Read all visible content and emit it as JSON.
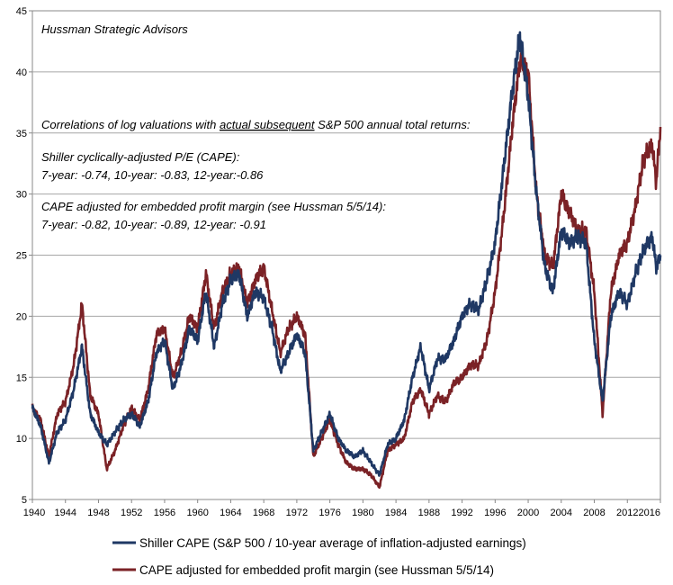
{
  "chart_data": {
    "type": "line",
    "title": "",
    "xlabel": "",
    "ylabel": "",
    "xlim": [
      1940,
      2016
    ],
    "ylim": [
      5,
      45
    ],
    "grid": "horizontal",
    "legend_position": "bottom",
    "x_ticks": [
      "1940",
      "1944",
      "1948",
      "1952",
      "1956",
      "1960",
      "1964",
      "1968",
      "1972",
      "1976",
      "1980",
      "1984",
      "1988",
      "1992",
      "1996",
      "2000",
      "2004",
      "2008",
      "2012",
      "2016"
    ],
    "y_ticks": [
      "5",
      "10",
      "15",
      "20",
      "25",
      "30",
      "35",
      "40",
      "45"
    ],
    "annotations": {
      "source": "Hussman Strategic Advisors",
      "corr_prefix": "Correlations of log valuations with ",
      "corr_underlined": "actual subsequent",
      "corr_suffix": " S&P 500 annual total returns:",
      "cape_title": "Shiller cyclically-adjusted P/E (CAPE):",
      "cape_values": "7-year: -0.74, 10-year: -0.83, 12-year:-0.86",
      "adj_title": "CAPE adjusted for embedded profit margin (see Hussman 5/5/14):",
      "adj_values": "7-year: -0.82, 10-year: -0.89, 12-year: -0.91"
    },
    "series": [
      {
        "name": "Shiller CAPE (S&P 500 / 10-year average of inflation-adjusted earnings)",
        "color": "#1f3864",
        "points": [
          [
            1940,
            12.5
          ],
          [
            1941,
            11
          ],
          [
            1942,
            8
          ],
          [
            1943,
            10.5
          ],
          [
            1944,
            11.5
          ],
          [
            1945,
            14
          ],
          [
            1946,
            17.5
          ],
          [
            1947,
            12
          ],
          [
            1948,
            10.5
          ],
          [
            1949,
            9.5
          ],
          [
            1950,
            10.5
          ],
          [
            1951,
            11.5
          ],
          [
            1952,
            12
          ],
          [
            1953,
            11
          ],
          [
            1954,
            13
          ],
          [
            1955,
            17
          ],
          [
            1956,
            18
          ],
          [
            1957,
            14
          ],
          [
            1958,
            16
          ],
          [
            1959,
            19
          ],
          [
            1960,
            18
          ],
          [
            1961,
            22
          ],
          [
            1962,
            17.5
          ],
          [
            1963,
            21
          ],
          [
            1964,
            23
          ],
          [
            1965,
            23.5
          ],
          [
            1966,
            20
          ],
          [
            1967,
            22
          ],
          [
            1968,
            21.5
          ],
          [
            1969,
            19
          ],
          [
            1970,
            15.5
          ],
          [
            1971,
            17
          ],
          [
            1972,
            18.5
          ],
          [
            1973,
            17
          ],
          [
            1974,
            9
          ],
          [
            1975,
            10.5
          ],
          [
            1976,
            12
          ],
          [
            1977,
            10
          ],
          [
            1978,
            9
          ],
          [
            1979,
            8.5
          ],
          [
            1980,
            9
          ],
          [
            1981,
            8
          ],
          [
            1982,
            7
          ],
          [
            1983,
            9.5
          ],
          [
            1984,
            10
          ],
          [
            1985,
            11.5
          ],
          [
            1986,
            15
          ],
          [
            1987,
            17.5
          ],
          [
            1988,
            14
          ],
          [
            1989,
            16.5
          ],
          [
            1990,
            16.5
          ],
          [
            1991,
            18
          ],
          [
            1992,
            20
          ],
          [
            1993,
            21
          ],
          [
            1994,
            20.5
          ],
          [
            1995,
            23
          ],
          [
            1996,
            26
          ],
          [
            1997,
            32
          ],
          [
            1998,
            38
          ],
          [
            1999,
            43
          ],
          [
            2000,
            38
          ],
          [
            2001,
            30
          ],
          [
            2002,
            24
          ],
          [
            2003,
            22
          ],
          [
            2004,
            27
          ],
          [
            2005,
            26
          ],
          [
            2006,
            26.5
          ],
          [
            2007,
            26
          ],
          [
            2008,
            18
          ],
          [
            2009,
            13
          ],
          [
            2010,
            20
          ],
          [
            2011,
            22
          ],
          [
            2012,
            21
          ],
          [
            2013,
            23.5
          ],
          [
            2014,
            25.5
          ],
          [
            2015,
            26.5
          ],
          [
            2015.5,
            24
          ],
          [
            2016,
            25
          ]
        ]
      },
      {
        "name": "CAPE adjusted for embedded profit margin (see Hussman 5/5/14)",
        "color": "#7b2226",
        "points": [
          [
            1940,
            12.5
          ],
          [
            1941,
            11.5
          ],
          [
            1942,
            8.5
          ],
          [
            1943,
            12
          ],
          [
            1944,
            13
          ],
          [
            1945,
            16
          ],
          [
            1946,
            21
          ],
          [
            1947,
            13.5
          ],
          [
            1948,
            12
          ],
          [
            1949,
            7.5
          ],
          [
            1950,
            9
          ],
          [
            1951,
            11
          ],
          [
            1952,
            12.5
          ],
          [
            1953,
            11.5
          ],
          [
            1954,
            14
          ],
          [
            1955,
            18.5
          ],
          [
            1956,
            19
          ],
          [
            1957,
            15
          ],
          [
            1958,
            17
          ],
          [
            1959,
            20
          ],
          [
            1960,
            19
          ],
          [
            1961,
            23.5
          ],
          [
            1962,
            19
          ],
          [
            1963,
            22
          ],
          [
            1964,
            23.5
          ],
          [
            1965,
            24
          ],
          [
            1966,
            21
          ],
          [
            1967,
            23
          ],
          [
            1968,
            24
          ],
          [
            1969,
            20.5
          ],
          [
            1970,
            17
          ],
          [
            1971,
            19
          ],
          [
            1972,
            20
          ],
          [
            1973,
            18.5
          ],
          [
            1974,
            8.5
          ],
          [
            1975,
            10
          ],
          [
            1976,
            11.5
          ],
          [
            1977,
            9.5
          ],
          [
            1978,
            8
          ],
          [
            1979,
            7.5
          ],
          [
            1980,
            7.5
          ],
          [
            1981,
            7
          ],
          [
            1982,
            6
          ],
          [
            1983,
            9
          ],
          [
            1984,
            9.5
          ],
          [
            1985,
            10
          ],
          [
            1986,
            13
          ],
          [
            1987,
            14
          ],
          [
            1988,
            12
          ],
          [
            1989,
            13.5
          ],
          [
            1990,
            13
          ],
          [
            1991,
            14.5
          ],
          [
            1992,
            15
          ],
          [
            1993,
            16
          ],
          [
            1994,
            16
          ],
          [
            1995,
            18
          ],
          [
            1996,
            22
          ],
          [
            1997,
            28
          ],
          [
            1998,
            35
          ],
          [
            1999,
            41
          ],
          [
            2000,
            40
          ],
          [
            2001,
            30
          ],
          [
            2002,
            25
          ],
          [
            2003,
            24
          ],
          [
            2004,
            30
          ],
          [
            2005,
            28.5
          ],
          [
            2006,
            27
          ],
          [
            2007,
            27
          ],
          [
            2008,
            22
          ],
          [
            2009,
            12
          ],
          [
            2010,
            22
          ],
          [
            2011,
            25
          ],
          [
            2012,
            26
          ],
          [
            2013,
            29
          ],
          [
            2014,
            33
          ],
          [
            2015,
            34
          ],
          [
            2015.5,
            31
          ],
          [
            2016,
            35.5
          ]
        ]
      }
    ]
  }
}
